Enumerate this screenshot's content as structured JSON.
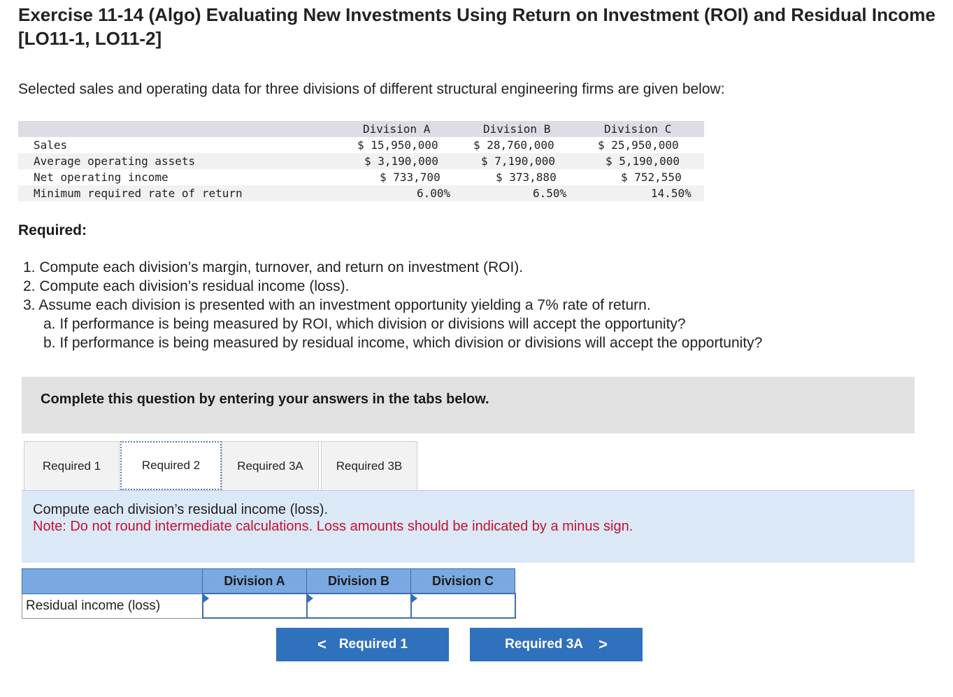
{
  "title": "Exercise 11-14 (Algo) Evaluating New Investments Using Return on Investment (ROI) and Residual Income [LO11-1, LO11-2]",
  "intro": "Selected sales and operating data for three divisions of different structural engineering firms are given below:",
  "data_table": {
    "headers": [
      "Division A",
      "Division B",
      "Division C"
    ],
    "rows": [
      {
        "label": "Sales",
        "a": "$ 15,950,000",
        "b": "$ 28,760,000",
        "c": "$ 25,950,000"
      },
      {
        "label": "Average operating assets",
        "a": "$ 3,190,000",
        "b": "$ 7,190,000",
        "c": "$ 5,190,000"
      },
      {
        "label": "Net operating income",
        "a": "$ 733,700",
        "b": "$ 373,880",
        "c": "$ 752,550"
      },
      {
        "label": "Minimum required rate of return",
        "a": "6.00%",
        "b": "6.50%",
        "c": "14.50%"
      }
    ]
  },
  "required_heading": "Required:",
  "required_items": [
    "1. Compute each division’s margin, turnover, and return on investment (ROI).",
    "2. Compute each division’s residual income (loss).",
    "3. Assume each division is presented with an investment opportunity yielding a 7% rate of return.",
    "a. If performance is being measured by ROI, which division or divisions will accept the opportunity?",
    "b. If performance is being measured by residual income, which division or divisions will accept the opportunity?"
  ],
  "banner": "Complete this question by entering your answers in the tabs below.",
  "tabs": [
    "Required 1",
    "Required 2",
    "Required 3A",
    "Required 3B"
  ],
  "active_tab": "Required 2",
  "panel": {
    "instruction": "Compute each division’s residual income (loss).",
    "note": "Note: Do not round intermediate calculations. Loss amounts should be indicated by a minus sign."
  },
  "answer_table": {
    "columns": [
      "Division A",
      "Division B",
      "Division C"
    ],
    "row_label": "Residual income (loss)",
    "values": [
      "",
      "",
      ""
    ]
  },
  "nav": {
    "prev_label": "Required 1",
    "next_label": "Required 3A"
  }
}
